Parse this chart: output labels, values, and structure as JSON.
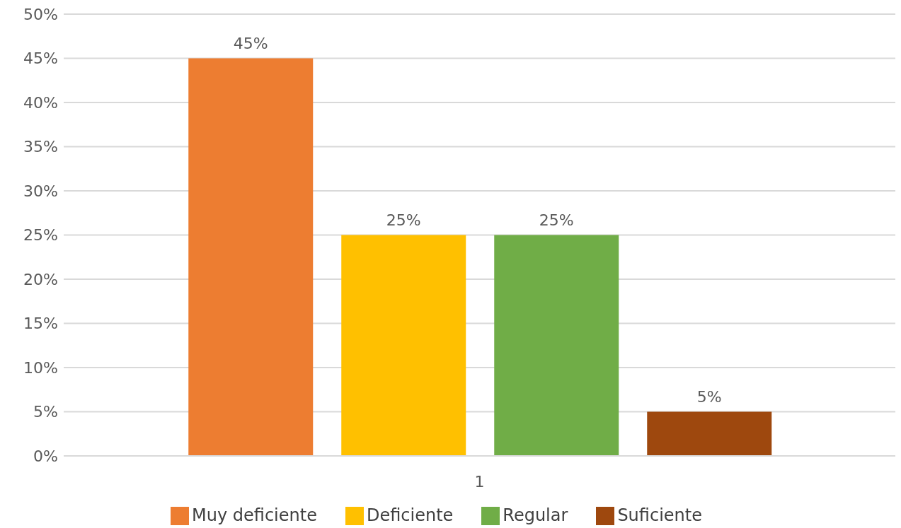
{
  "chart_data": {
    "type": "bar",
    "categories": [
      "1"
    ],
    "series": [
      {
        "name": "Muy deficiente",
        "color": "#ed7d31",
        "values": [
          45
        ],
        "value_labels": [
          "45%"
        ]
      },
      {
        "name": "Deficiente",
        "color": "#ffc000",
        "values": [
          25
        ],
        "value_labels": [
          "25%"
        ]
      },
      {
        "name": "Regular",
        "color": "#70ad47",
        "values": [
          25
        ],
        "value_labels": [
          "25%"
        ]
      },
      {
        "name": "Suficiente",
        "color": "#9e480e",
        "values": [
          5
        ],
        "value_labels": [
          "5%"
        ]
      }
    ],
    "ylim": [
      0,
      50
    ],
    "yticks": [
      {
        "value": 0,
        "label": "0%"
      },
      {
        "value": 5,
        "label": "5%"
      },
      {
        "value": 10,
        "label": "10%"
      },
      {
        "value": 15,
        "label": "15%"
      },
      {
        "value": 20,
        "label": "20%"
      },
      {
        "value": 25,
        "label": "25%"
      },
      {
        "value": 30,
        "label": "30%"
      },
      {
        "value": 35,
        "label": "35%"
      },
      {
        "value": 40,
        "label": "40%"
      },
      {
        "value": 45,
        "label": "45%"
      },
      {
        "value": 50,
        "label": "50%"
      }
    ],
    "grid": "y",
    "legend": "bottom"
  }
}
